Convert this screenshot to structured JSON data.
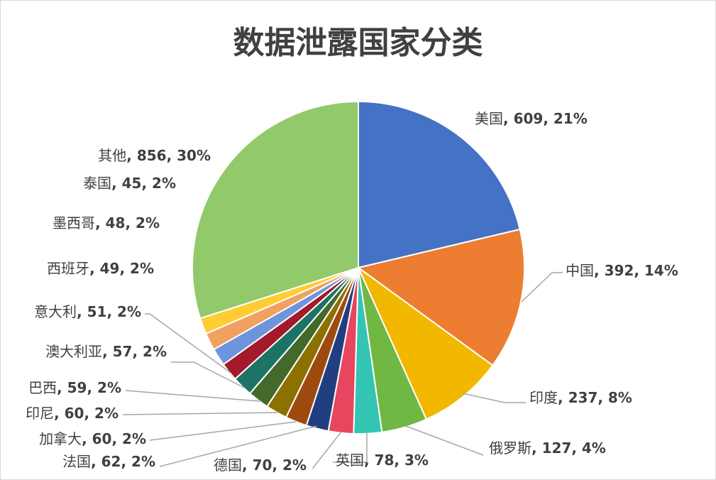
{
  "chart_data": {
    "type": "pie",
    "title": "数据泄露国家分类",
    "legend": "none",
    "slices": [
      {
        "name": "美国",
        "value": 609,
        "percent": "21%",
        "color": "#4472C4"
      },
      {
        "name": "中国",
        "value": 392,
        "percent": "14%",
        "color": "#ED7D31"
      },
      {
        "name": "印度",
        "value": 237,
        "percent": "8%",
        "color": "#F2B800"
      },
      {
        "name": "俄罗斯",
        "value": 127,
        "percent": "4%",
        "color": "#70B843"
      },
      {
        "name": "英国",
        "value": 78,
        "percent": "3%",
        "color": "#33C4B4"
      },
      {
        "name": "德国",
        "value": 70,
        "percent": "2%",
        "color": "#E8465E"
      },
      {
        "name": "法国",
        "value": 62,
        "percent": "2%",
        "color": "#213E80"
      },
      {
        "name": "加拿大",
        "value": 60,
        "percent": "2%",
        "color": "#9E4A0F"
      },
      {
        "name": "印尼",
        "value": 60,
        "percent": "2%",
        "color": "#8C7000"
      },
      {
        "name": "巴西",
        "value": 59,
        "percent": "2%",
        "color": "#43692B"
      },
      {
        "name": "澳大利亚",
        "value": 57,
        "percent": "2%",
        "color": "#1D7466"
      },
      {
        "name": "意大利",
        "value": 51,
        "percent": "2%",
        "color": "#A31A2A"
      },
      {
        "name": "西班牙",
        "value": 49,
        "percent": "2%",
        "color": "#6E94DC"
      },
      {
        "name": "墨西哥",
        "value": 48,
        "percent": "2%",
        "color": "#F0A060"
      },
      {
        "name": "泰国",
        "value": 45,
        "percent": "2%",
        "color": "#FFCC33"
      },
      {
        "name": "其他",
        "value": 856,
        "percent": "30%",
        "color": "#92C96A"
      }
    ]
  }
}
